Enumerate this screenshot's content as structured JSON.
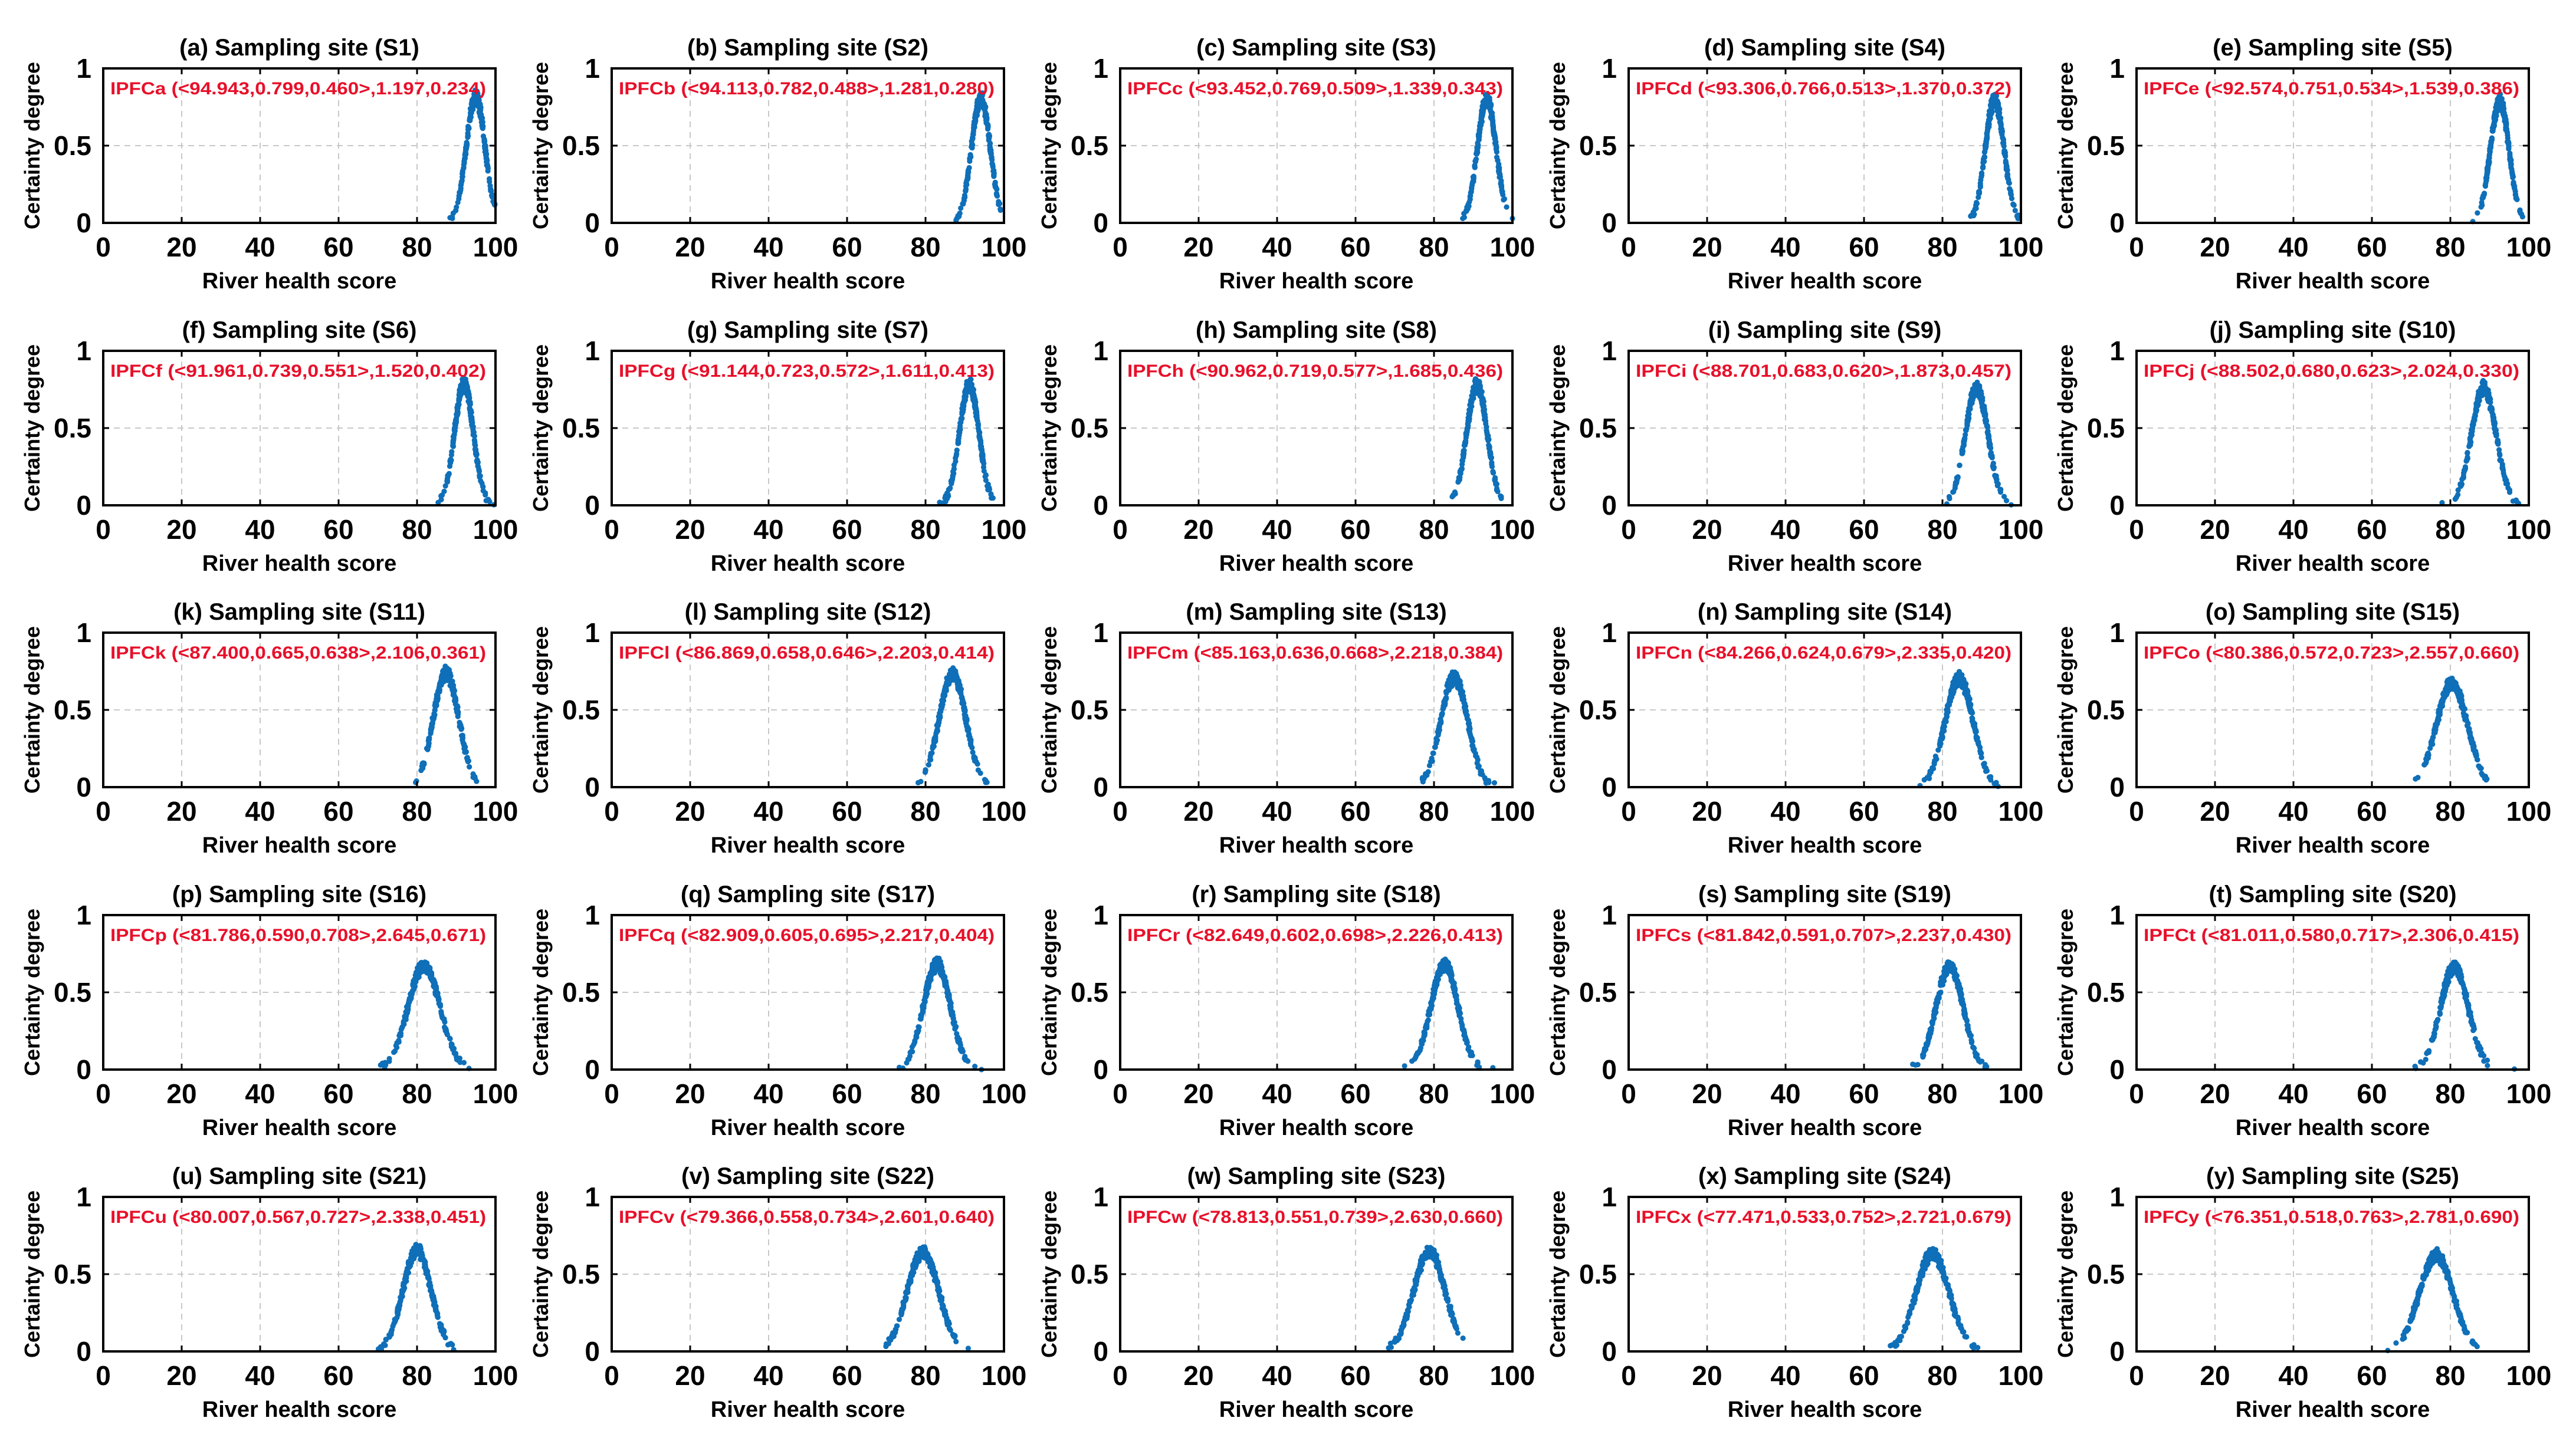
{
  "chart_data": {
    "type": "scatter",
    "layout": "grid-5x5",
    "xlabel": "River health score",
    "ylabel": "Certainty degree",
    "xlim": [
      0,
      100
    ],
    "ylim": [
      0,
      1
    ],
    "xticks": [
      "0",
      "20",
      "40",
      "60",
      "80",
      "100"
    ],
    "yticks": [
      "0",
      "0.5",
      "1"
    ],
    "grid": true,
    "marker_color": "#0f6fb8",
    "annotation_color": "#e8102a",
    "panels": [
      {
        "title": "(a) Sampling site (S1)",
        "annotation": "IPFCa (<94.943,0.799,0.460>,1.197,0.234)",
        "ex": 94.943,
        "en": 1.197,
        "he": 0.234,
        "peak": 0.85
      },
      {
        "title": "(b) Sampling site (S2)",
        "annotation": "IPFCb (<94.113,0.782,0.488>,1.281,0.280)",
        "ex": 94.113,
        "en": 1.281,
        "he": 0.28,
        "peak": 0.84
      },
      {
        "title": "(c) Sampling site (S3)",
        "annotation": "IPFCc (<93.452,0.769,0.509>,1.339,0.343)",
        "ex": 93.452,
        "en": 1.339,
        "he": 0.343,
        "peak": 0.83
      },
      {
        "title": "(d) Sampling site (S4)",
        "annotation": "IPFCd (<93.306,0.766,0.513>,1.370,0.372)",
        "ex": 93.306,
        "en": 1.37,
        "he": 0.372,
        "peak": 0.83
      },
      {
        "title": "(e) Sampling site (S5)",
        "annotation": "IPFCe (<92.574,0.751,0.534>,1.539,0.386)",
        "ex": 92.574,
        "en": 1.539,
        "he": 0.386,
        "peak": 0.82
      },
      {
        "title": "(f) Sampling site (S6)",
        "annotation": "IPFCf (<91.961,0.739,0.551>,1.520,0.402)",
        "ex": 91.961,
        "en": 1.52,
        "he": 0.402,
        "peak": 0.82
      },
      {
        "title": "(g) Sampling site (S7)",
        "annotation": "IPFCg (<91.144,0.723,0.572>,1.611,0.413)",
        "ex": 91.144,
        "en": 1.611,
        "he": 0.413,
        "peak": 0.81
      },
      {
        "title": "(h) Sampling site (S8)",
        "annotation": "IPFCh (<90.962,0.719,0.577>,1.685,0.436)",
        "ex": 90.962,
        "en": 1.685,
        "he": 0.436,
        "peak": 0.81
      },
      {
        "title": "(i) Sampling site (S9)",
        "annotation": "IPFCi (<88.701,0.683,0.620>,1.873,0.457)",
        "ex": 88.701,
        "en": 1.873,
        "he": 0.457,
        "peak": 0.79
      },
      {
        "title": "(j) Sampling site (S10)",
        "annotation": "IPFCj (<88.502,0.680,0.623>,2.024,0.330)",
        "ex": 88.502,
        "en": 2.024,
        "he": 0.33,
        "peak": 0.79
      },
      {
        "title": "(k) Sampling site (S11)",
        "annotation": "IPFCk (<87.400,0.665,0.638>,2.106,0.361)",
        "ex": 87.4,
        "en": 2.106,
        "he": 0.361,
        "peak": 0.77
      },
      {
        "title": "(l) Sampling site (S12)",
        "annotation": "IPFCl (<86.869,0.658,0.646>,2.203,0.414)",
        "ex": 86.869,
        "en": 2.203,
        "he": 0.414,
        "peak": 0.76
      },
      {
        "title": "(m) Sampling site (S13)",
        "annotation": "IPFCm (<85.163,0.636,0.668>,2.218,0.384)",
        "ex": 85.163,
        "en": 2.218,
        "he": 0.384,
        "peak": 0.74
      },
      {
        "title": "(n) Sampling site (S14)",
        "annotation": "IPFCn (<84.266,0.624,0.679>,2.335,0.420)",
        "ex": 84.266,
        "en": 2.335,
        "he": 0.42,
        "peak": 0.73
      },
      {
        "title": "(o) Sampling site (S15)",
        "annotation": "IPFCo (<80.386,0.572,0.723>,2.557,0.660)",
        "ex": 80.386,
        "en": 2.557,
        "he": 0.66,
        "peak": 0.7
      },
      {
        "title": "(p) Sampling site (S16)",
        "annotation": "IPFCp (<81.786,0.590,0.708>,2.645,0.671)",
        "ex": 81.786,
        "en": 2.645,
        "he": 0.671,
        "peak": 0.7
      },
      {
        "title": "(q) Sampling site (S17)",
        "annotation": "IPFCq (<82.909,0.605,0.695>,2.217,0.404)",
        "ex": 82.909,
        "en": 2.217,
        "he": 0.404,
        "peak": 0.71
      },
      {
        "title": "(r) Sampling site (S18)",
        "annotation": "IPFCr (<82.649,0.602,0.698>,2.226,0.413)",
        "ex": 82.649,
        "en": 2.226,
        "he": 0.413,
        "peak": 0.71
      },
      {
        "title": "(s) Sampling site (S19)",
        "annotation": "IPFCs (<81.842,0.591,0.707>,2.237,0.430)",
        "ex": 81.842,
        "en": 2.237,
        "he": 0.43,
        "peak": 0.7
      },
      {
        "title": "(t) Sampling site (S20)",
        "annotation": "IPFCt (<81.011,0.580,0.717>,2.306,0.415)",
        "ex": 81.011,
        "en": 2.306,
        "he": 0.415,
        "peak": 0.69
      },
      {
        "title": "(u) Sampling site (S21)",
        "annotation": "IPFCu (<80.007,0.567,0.727>,2.338,0.451)",
        "ex": 80.007,
        "en": 2.338,
        "he": 0.451,
        "peak": 0.68
      },
      {
        "title": "(v) Sampling site (S22)",
        "annotation": "IPFCv (<79.366,0.558,0.734>,2.601,0.640)",
        "ex": 79.366,
        "en": 2.601,
        "he": 0.64,
        "peak": 0.67
      },
      {
        "title": "(w) Sampling site (S23)",
        "annotation": "IPFCw (<78.813,0.551,0.739>,2.630,0.660)",
        "ex": 78.813,
        "en": 2.63,
        "he": 0.66,
        "peak": 0.67
      },
      {
        "title": "(x) Sampling site (S24)",
        "annotation": "IPFCx (<77.471,0.533,0.752>,2.721,0.679)",
        "ex": 77.471,
        "en": 2.721,
        "he": 0.679,
        "peak": 0.66
      },
      {
        "title": "(y) Sampling site (S25)",
        "annotation": "IPFCy (<76.351,0.518,0.763>,2.781,0.690)",
        "ex": 76.351,
        "en": 2.781,
        "he": 0.69,
        "peak": 0.65
      }
    ]
  }
}
